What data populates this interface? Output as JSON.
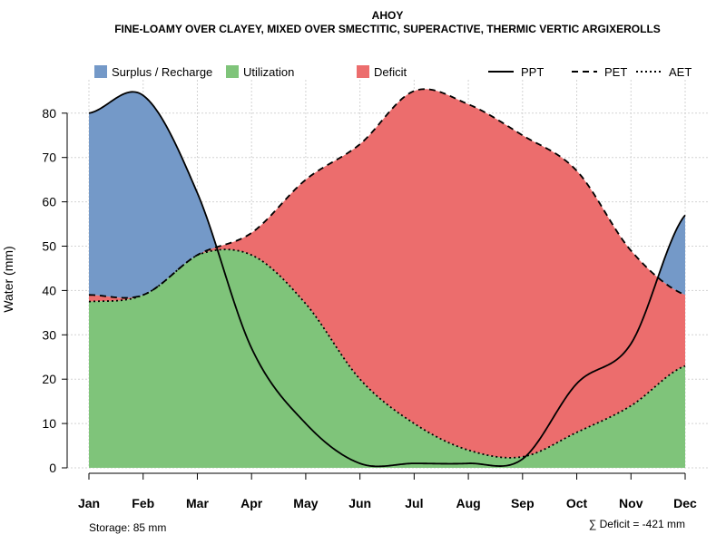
{
  "chart_data": {
    "type": "area",
    "title": "AHOY",
    "subtitle": "FINE-LOAMY OVER CLAYEY, MIXED OVER SMECTITIC, SUPERACTIVE, THERMIC VERTIC ARGIXEROLLS",
    "ylabel": "Water (mm)",
    "xlabel": "",
    "ylim": [
      0,
      88
    ],
    "yticks": [
      0,
      10,
      20,
      30,
      40,
      50,
      60,
      70,
      80
    ],
    "grid": true,
    "legend_position": "top",
    "categories": [
      "Jan",
      "Feb",
      "Mar",
      "Apr",
      "May",
      "Jun",
      "Jul",
      "Aug",
      "Sep",
      "Oct",
      "Nov",
      "Dec"
    ],
    "series": [
      {
        "name": "PPT",
        "style": "solid",
        "values": [
          80,
          84,
          62,
          27,
          10,
          1,
          1,
          1,
          2,
          19,
          28,
          57
        ]
      },
      {
        "name": "PET",
        "style": "dashed",
        "values": [
          39,
          39,
          48,
          53,
          65,
          73,
          85,
          82,
          75,
          67,
          49,
          39
        ]
      },
      {
        "name": "AET",
        "style": "dotted",
        "values": [
          37.5,
          39,
          48,
          48,
          37,
          20,
          10,
          4,
          2.5,
          8,
          14,
          23
        ]
      }
    ],
    "legend": [
      {
        "label": "Surplus / Recharge",
        "kind": "fill",
        "color": "#7499c8"
      },
      {
        "label": "Utilization",
        "kind": "fill",
        "color": "#7fc47a"
      },
      {
        "label": "Deficit",
        "kind": "fill",
        "color": "#ec6d6d"
      },
      {
        "label": "PPT",
        "kind": "line",
        "dash": "solid"
      },
      {
        "label": "PET",
        "kind": "line",
        "dash": "dashed"
      },
      {
        "label": "AET",
        "kind": "line",
        "dash": "dotted"
      }
    ],
    "colors": {
      "surplus": "#7499c8",
      "utilization": "#7fc47a",
      "deficit": "#ec6d6d"
    }
  },
  "footer": {
    "storage": "Storage: 85 mm",
    "deficit": "∑ Deficit = -421 mm"
  }
}
